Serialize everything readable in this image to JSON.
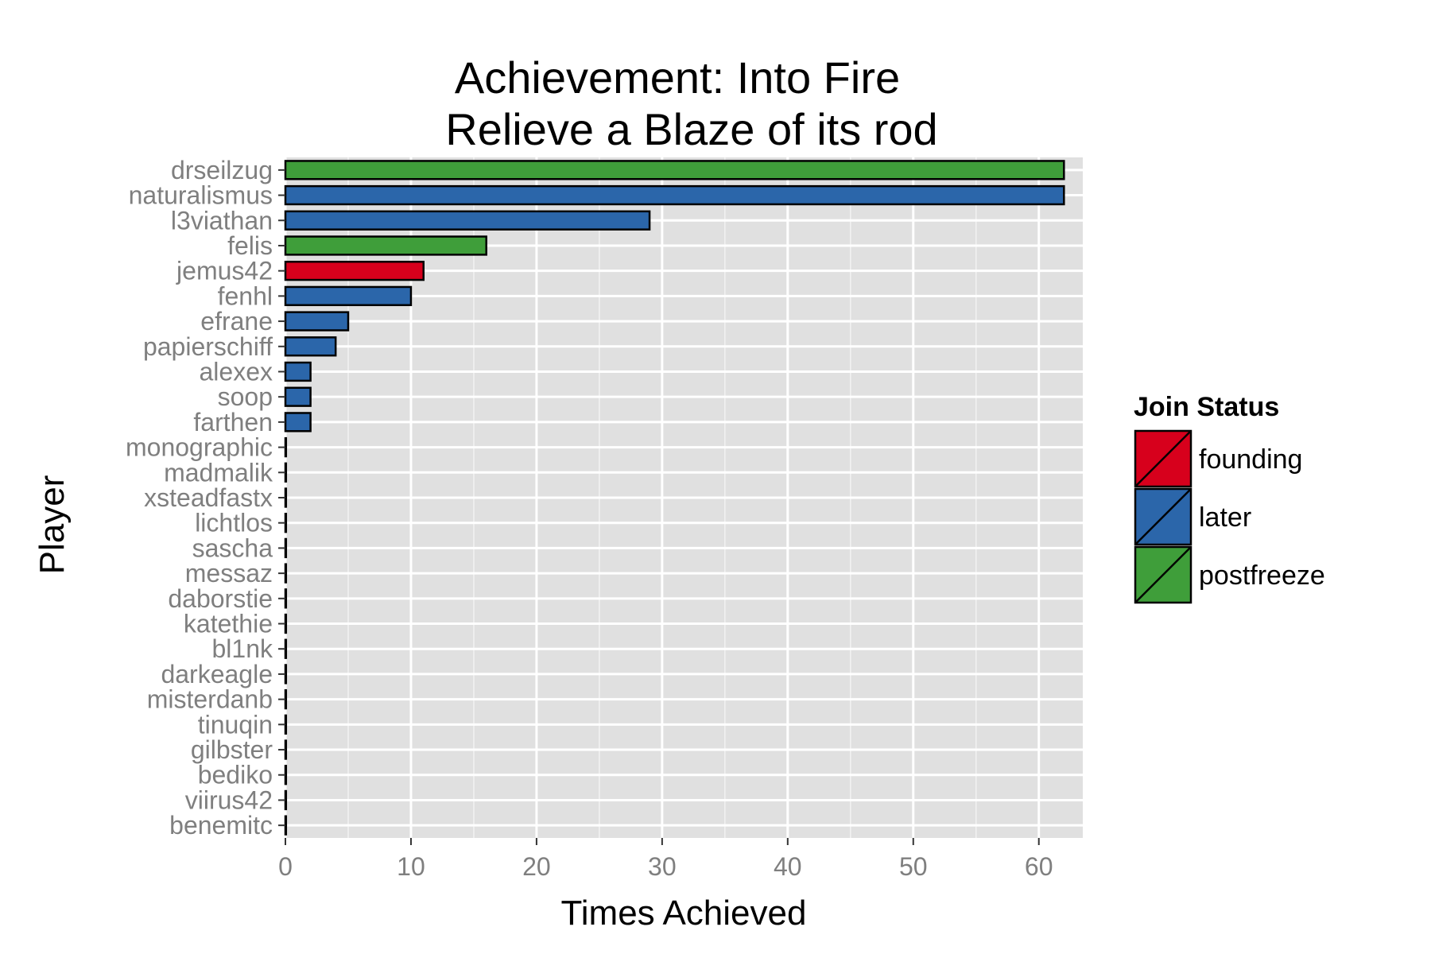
{
  "chart_data": {
    "type": "bar",
    "orientation": "horizontal",
    "title": [
      "Achievement: Into Fire",
      "Relieve a Blaze of its rod"
    ],
    "xlabel": "Times Achieved",
    "ylabel": "Player",
    "xlim": [
      0,
      63.5
    ],
    "xticks": [
      0,
      10,
      20,
      30,
      40,
      50,
      60
    ],
    "grid": true,
    "legend_placement": "right",
    "legend": {
      "title": "Join Status",
      "entries": [
        {
          "name": "founding",
          "color": "#d7001c"
        },
        {
          "name": "later",
          "color": "#2b66aa"
        },
        {
          "name": "postfreeze",
          "color": "#3f9e3a"
        }
      ]
    },
    "categories": [
      "drseilzug",
      "naturalismus",
      "l3viathan",
      "felis",
      "jemus42",
      "fenhl",
      "efrane",
      "papierschiff",
      "alexex",
      "soop",
      "farthen",
      "monographic",
      "madmalik",
      "xsteadfastx",
      "lichtlos",
      "sascha",
      "messaz",
      "daborstie",
      "katethie",
      "bl1nk",
      "darkeagle",
      "misterdanb",
      "tinuqin",
      "gilbster",
      "bediko",
      "viirus42",
      "benemitc"
    ],
    "values": [
      62,
      62,
      29,
      16,
      11,
      10,
      5,
      4,
      2,
      2,
      2,
      0,
      0,
      0,
      0,
      0,
      0,
      0,
      0,
      0,
      0,
      0,
      0,
      0,
      0,
      0,
      0
    ],
    "groups": [
      "postfreeze",
      "later",
      "later",
      "postfreeze",
      "founding",
      "later",
      "later",
      "later",
      "later",
      "later",
      "later",
      "later",
      "later",
      "later",
      "later",
      "later",
      "later",
      "later",
      "later",
      "later",
      "later",
      "later",
      "later",
      "later",
      "later",
      "later",
      "later"
    ],
    "colors": {
      "panel": "#e0e0e0",
      "grid": "#ffffff",
      "bar_outline": "#000000"
    }
  }
}
